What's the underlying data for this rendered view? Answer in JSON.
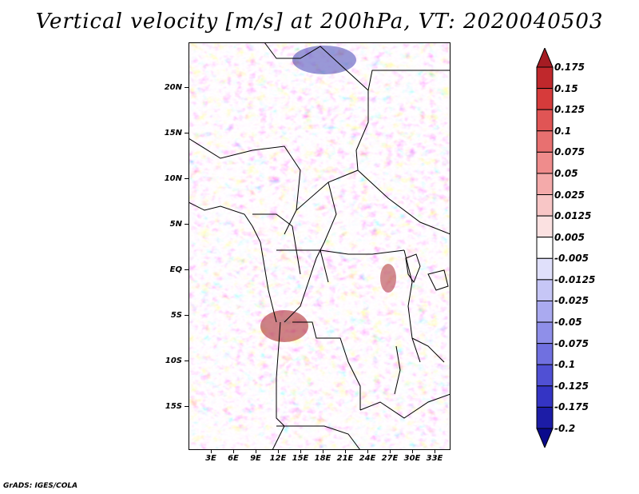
{
  "title": "Vertical velocity [m/s] at 200hPa, VT: 2020040503",
  "credit": "GrADS: IGES/COLA",
  "lat_labels": [
    "20N",
    "15N",
    "10N",
    "5N",
    "EQ",
    "5S",
    "10S",
    "15S"
  ],
  "lon_labels": [
    "3E",
    "6E",
    "9E",
    "12E",
    "15E",
    "18E",
    "21E",
    "24E",
    "27E",
    "30E",
    "33E"
  ],
  "colorbar": {
    "labels": [
      "0.175",
      "0.15",
      "0.125",
      "0.1",
      "0.075",
      "0.05",
      "0.025",
      "0.0125",
      "0.005",
      "-0.005",
      "-0.0125",
      "-0.025",
      "-0.05",
      "-0.075",
      "-0.1",
      "-0.125",
      "-0.175",
      "-0.2"
    ],
    "colors": [
      "#a51c23",
      "#c0282c",
      "#d63b3b",
      "#e05555",
      "#e87070",
      "#ef8c8c",
      "#f4aaaa",
      "#f8c6c6",
      "#fbe1e1",
      "#ffffff",
      "#e0e0fb",
      "#c6c6f6",
      "#aaaaf0",
      "#8f8fe9",
      "#7070e0",
      "#5050d4",
      "#3434c4",
      "#1c1ca6",
      "#0a0a8c"
    ]
  },
  "colors": {
    "red_max": "#a51c23",
    "blue_max": "#0a0a8c",
    "border": "#000000"
  }
}
